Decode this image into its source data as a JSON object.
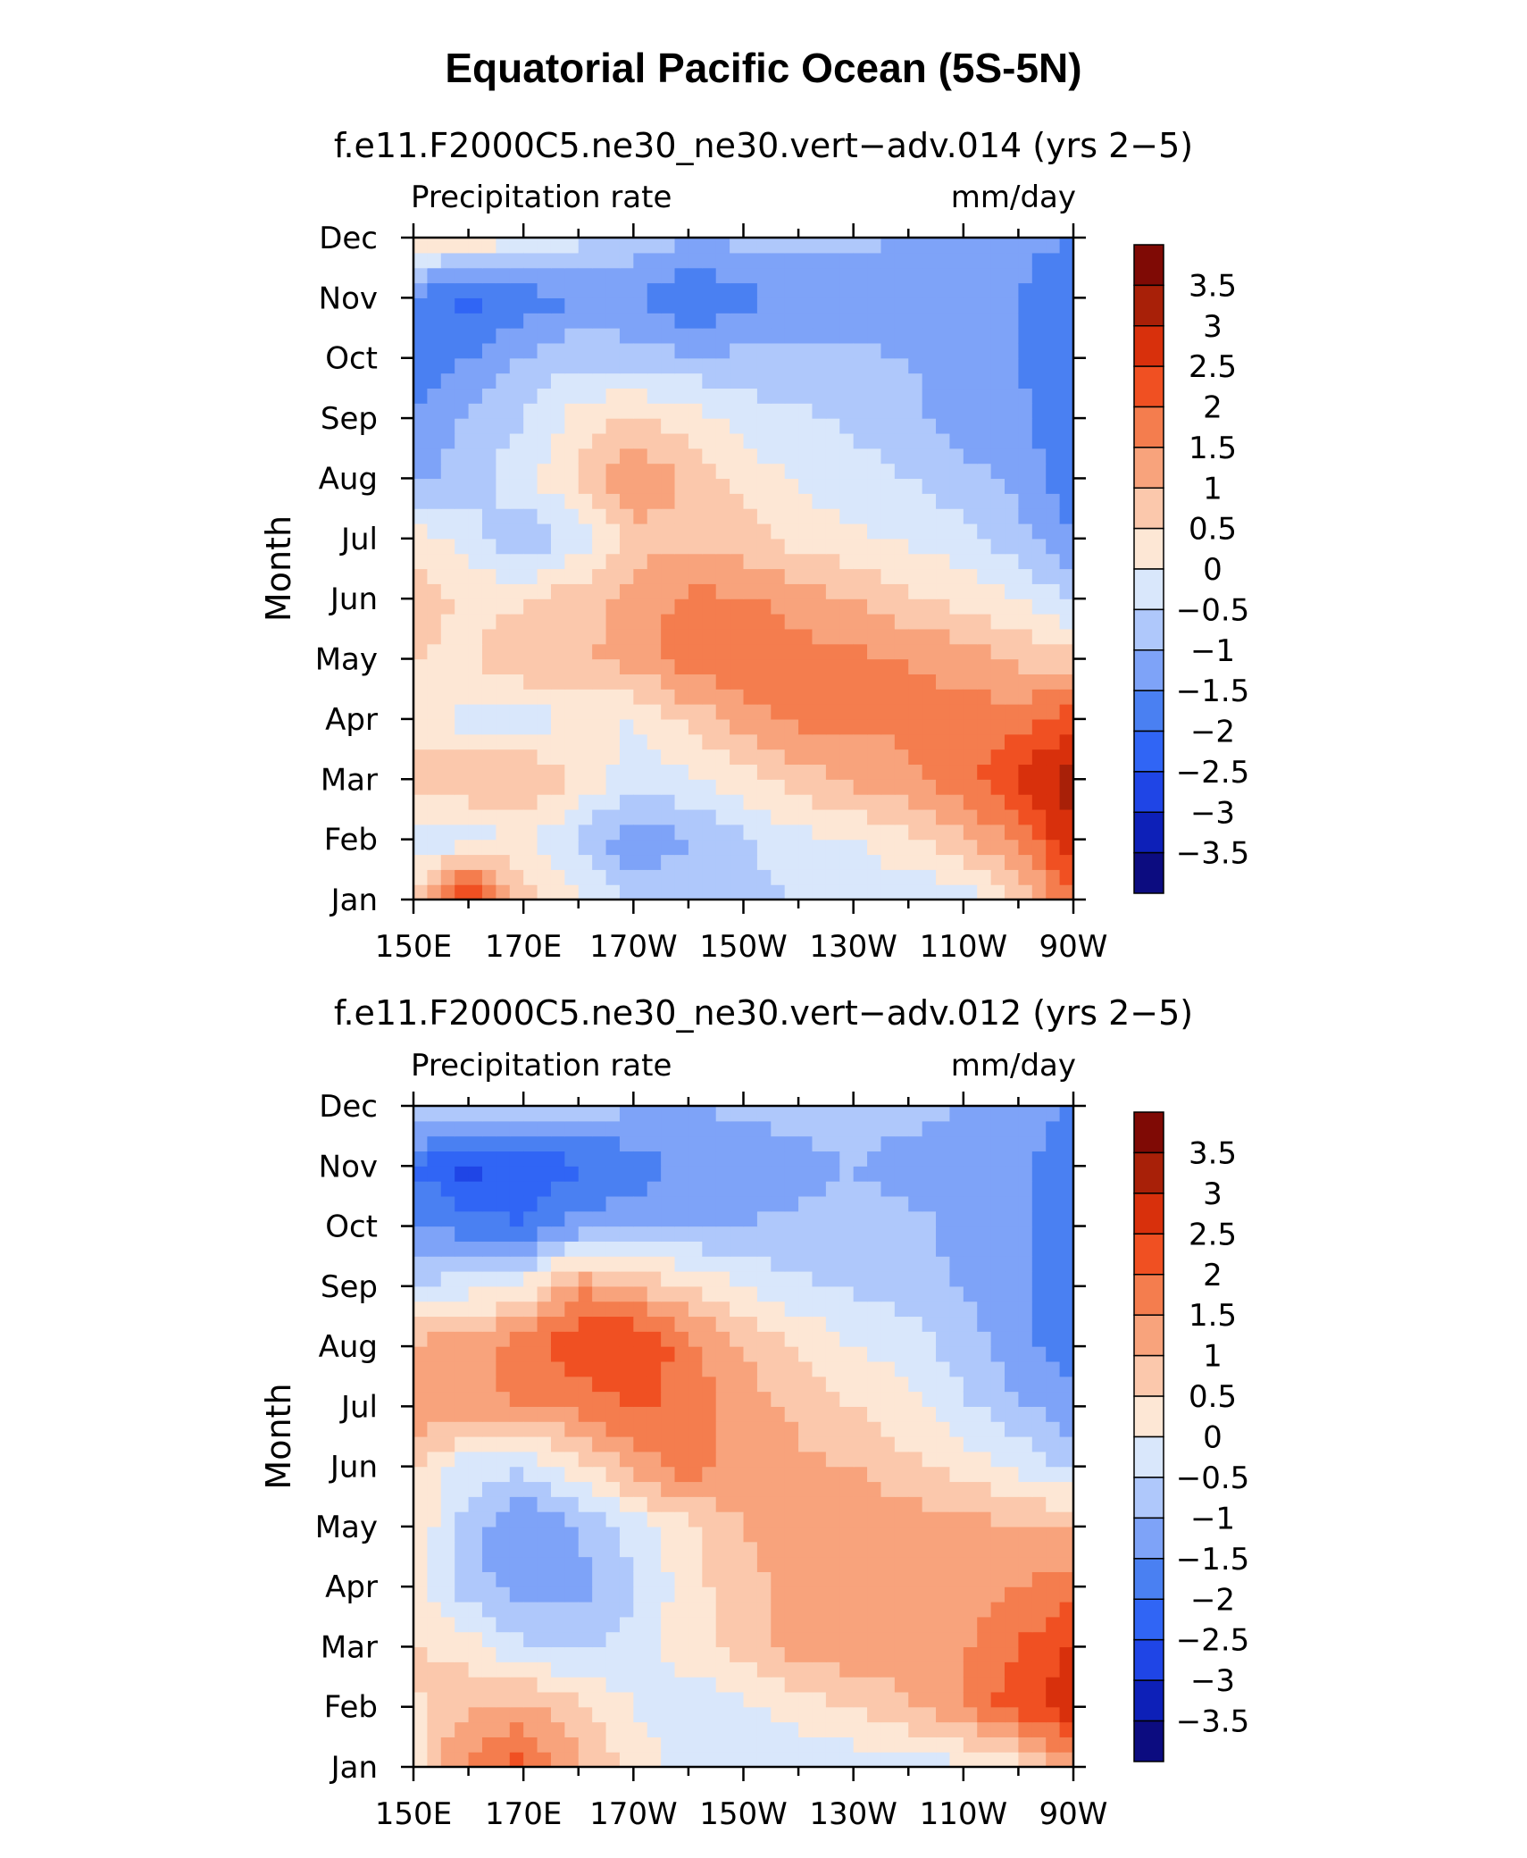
{
  "figure_title": "Equatorial Pacific Ocean (5S-5N)",
  "chart_data": [
    {
      "type": "heatmap",
      "panel": "top",
      "subtitle": "f.e11.F2000C5.ne30_ne30.vert−adv.014 (yrs 2−5)",
      "variable_label": "Precipitation rate",
      "units_label": "mm/day",
      "ylabel": "Month",
      "xlabel": "",
      "x_tick_labels": [
        "150E",
        "170E",
        "170W",
        "150W",
        "130W",
        "110W",
        "90W"
      ],
      "x_tick_values": [
        150,
        170,
        190,
        210,
        230,
        250,
        270
      ],
      "xlim": [
        150,
        270
      ],
      "y_tick_labels": [
        "Jan",
        "Feb",
        "Mar",
        "Apr",
        "May",
        "Jun",
        "Jul",
        "Aug",
        "Sep",
        "Oct",
        "Nov",
        "Dec"
      ],
      "colorbar_labels": [
        "3.5",
        "3",
        "2.5",
        "2",
        "1.5",
        "1",
        "0.5",
        "0",
        "−0.5",
        "−1",
        "−1.5",
        "−2",
        "−2.5",
        "−3",
        "−3.5"
      ],
      "colorbar_levels": [
        3.5,
        3,
        2.5,
        2,
        1.5,
        1,
        0.5,
        0,
        -0.5,
        -1,
        -1.5,
        -2,
        -2.5,
        -3,
        -3.5
      ],
      "x": [
        150,
        160,
        170,
        180,
        190,
        200,
        210,
        220,
        230,
        240,
        250,
        260,
        270
      ],
      "values": [
        [
          0.5,
          3.0,
          0.8,
          0.0,
          -0.6,
          -0.8,
          -0.6,
          -0.5,
          -0.4,
          -0.4,
          -0.3,
          0.5,
          2.0
        ],
        [
          -0.3,
          -0.3,
          0.0,
          -0.6,
          -1.4,
          -1.0,
          -0.6,
          -0.2,
          0.0,
          0.4,
          0.9,
          1.6,
          3.0
        ],
        [
          0.8,
          1.0,
          1.1,
          0.4,
          -0.3,
          -0.1,
          0.3,
          0.8,
          1.1,
          1.4,
          1.8,
          2.5,
          3.4
        ],
        [
          0.2,
          -0.2,
          -0.4,
          0.2,
          0.0,
          0.6,
          1.3,
          1.6,
          1.6,
          1.6,
          1.7,
          1.8,
          2.3
        ],
        [
          0.5,
          0.4,
          1.1,
          0.9,
          1.2,
          1.9,
          1.8,
          1.7,
          1.6,
          1.5,
          1.3,
          0.9,
          0.7
        ],
        [
          0.7,
          0.4,
          0.4,
          0.8,
          1.2,
          1.6,
          1.6,
          1.3,
          1.0,
          0.6,
          0.3,
          0.0,
          -0.6
        ],
        [
          0.4,
          -0.3,
          -0.9,
          -0.3,
          0.8,
          0.9,
          0.7,
          0.3,
          0.1,
          -0.1,
          -0.3,
          -0.8,
          -1.5
        ],
        [
          -1.2,
          -0.7,
          -0.2,
          0.6,
          1.4,
          0.9,
          0.3,
          -0.1,
          -0.3,
          -0.5,
          -0.8,
          -1.2,
          -1.8
        ],
        [
          -1.4,
          -0.9,
          -0.5,
          0.2,
          0.6,
          0.3,
          -0.2,
          -0.4,
          -0.6,
          -0.8,
          -1.3,
          -1.4,
          -1.8
        ],
        [
          -2.0,
          -1.5,
          -1.0,
          -0.6,
          -0.8,
          -0.9,
          -0.9,
          -0.9,
          -0.9,
          -1.0,
          -1.4,
          -1.5,
          -1.9
        ],
        [
          -1.6,
          -2.2,
          -1.8,
          -1.5,
          -1.4,
          -2.1,
          -1.6,
          -1.5,
          -1.4,
          -1.4,
          -1.4,
          -1.5,
          -1.9
        ],
        [
          0.3,
          0.4,
          0.2,
          -0.4,
          -0.8,
          -0.9,
          -0.9,
          -0.9,
          -0.9,
          -1.0,
          -1.3,
          -1.4,
          -1.5
        ]
      ]
    },
    {
      "type": "heatmap",
      "panel": "bottom",
      "subtitle": "f.e11.F2000C5.ne30_ne30.vert−adv.012 (yrs 2−5)",
      "variable_label": "Precipitation rate",
      "units_label": "mm/day",
      "ylabel": "Month",
      "xlabel": "",
      "x_tick_labels": [
        "150E",
        "170E",
        "170W",
        "150W",
        "130W",
        "110W",
        "90W"
      ],
      "x_tick_values": [
        150,
        170,
        190,
        210,
        230,
        250,
        270
      ],
      "xlim": [
        150,
        270
      ],
      "y_tick_labels": [
        "Jan",
        "Feb",
        "Mar",
        "Apr",
        "May",
        "Jun",
        "Jul",
        "Aug",
        "Sep",
        "Oct",
        "Nov",
        "Dec"
      ],
      "colorbar_labels": [
        "3.5",
        "3",
        "2.5",
        "2",
        "1.5",
        "1",
        "0.5",
        "0",
        "−0.5",
        "−1",
        "−1.5",
        "−2",
        "−2.5",
        "−3",
        "−3.5"
      ],
      "colorbar_levels": [
        3.5,
        3,
        2.5,
        2,
        1.5,
        1,
        0.5,
        0,
        -0.5,
        -1,
        -1.5,
        -2,
        -2.5,
        -3,
        -3.5
      ],
      "x": [
        150,
        160,
        170,
        180,
        190,
        200,
        210,
        220,
        230,
        240,
        250,
        260,
        270
      ],
      "values": [
        [
          0.2,
          1.7,
          2.2,
          1.1,
          0.3,
          -0.2,
          -0.5,
          -0.4,
          -0.3,
          -0.2,
          -0.2,
          0.2,
          1.2
        ],
        [
          0.4,
          1.0,
          1.2,
          0.6,
          0.0,
          -0.4,
          -0.1,
          0.2,
          0.5,
          0.9,
          1.6,
          2.3,
          2.9
        ],
        [
          0.6,
          0.2,
          -0.4,
          -0.6,
          -0.3,
          0.3,
          0.7,
          1.3,
          1.4,
          1.3,
          1.4,
          2.0,
          2.6
        ],
        [
          0.2,
          -0.8,
          -1.3,
          -1.2,
          -0.6,
          0.3,
          0.8,
          1.2,
          1.5,
          1.3,
          1.3,
          1.5,
          1.8
        ],
        [
          0.4,
          -0.7,
          -1.6,
          -1.0,
          -0.3,
          0.4,
          1.0,
          1.3,
          1.4,
          1.3,
          1.2,
          1.0,
          1.0
        ],
        [
          0.5,
          -0.3,
          -0.4,
          0.3,
          1.2,
          1.8,
          1.3,
          1.1,
          1.0,
          0.6,
          0.3,
          -0.1,
          -0.6
        ],
        [
          1.4,
          1.3,
          1.5,
          1.6,
          2.1,
          1.8,
          1.2,
          0.9,
          0.5,
          0.2,
          -0.4,
          -0.9,
          -1.4
        ],
        [
          1.2,
          1.2,
          1.9,
          2.3,
          2.6,
          1.7,
          1.0,
          0.5,
          0.0,
          -0.3,
          -0.7,
          -1.4,
          -1.8
        ],
        [
          -0.5,
          -0.2,
          0.1,
          1.5,
          1.0,
          0.5,
          0.0,
          -0.4,
          -0.6,
          -0.7,
          -1.1,
          -1.3,
          -1.9
        ],
        [
          -1.4,
          -1.8,
          -2.0,
          -1.3,
          -1.2,
          -1.0,
          -1.0,
          -0.9,
          -0.8,
          -0.8,
          -1.2,
          -1.4,
          -1.9
        ],
        [
          -2.0,
          -2.7,
          -2.4,
          -2.1,
          -1.8,
          -1.4,
          -1.3,
          -1.2,
          -1.0,
          -1.3,
          -1.2,
          -1.4,
          -1.8
        ],
        [
          -0.5,
          -0.2,
          -0.5,
          -0.8,
          -0.9,
          -1.0,
          -0.9,
          -0.8,
          -0.7,
          -0.8,
          -1.0,
          -1.3,
          -1.5
        ]
      ]
    }
  ],
  "colors": {
    "palette_low_to_high": [
      "#0c0c80",
      "#0d20b8",
      "#1f45e6",
      "#3065f5",
      "#4a80f2",
      "#7ea3f8",
      "#afc8fb",
      "#d9e7fb",
      "#fde7d5",
      "#fbc8ac",
      "#f8a37c",
      "#f47d4e",
      "#f05022",
      "#d8300c",
      "#a82008",
      "#7f0a05"
    ]
  }
}
